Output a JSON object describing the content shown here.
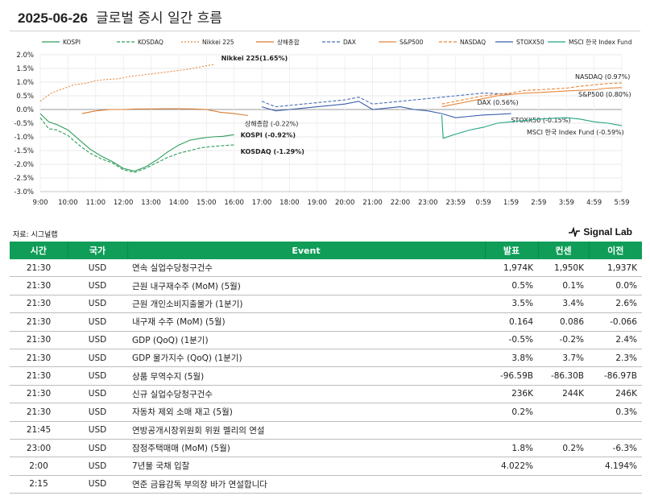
{
  "header": {
    "date": "2025-06-26",
    "title": "글로벌 증시 일간 흐름"
  },
  "chart_data": {
    "type": "line",
    "title": "글로벌 증시 일간 흐름",
    "x_ticks": [
      "9:00",
      "10:00",
      "11:00",
      "12:00",
      "13:00",
      "14:00",
      "15:00",
      "16:00",
      "17:00",
      "18:00",
      "19:00",
      "20:00",
      "21:00",
      "22:00",
      "23:00",
      "23:59",
      "0:59",
      "1:59",
      "2:59",
      "3:59",
      "4:59",
      "5:59"
    ],
    "y_ticks": [
      "2.0%",
      "1.5%",
      "1.0%",
      "0.5%",
      "0.0%",
      "-0.5%",
      "-1.0%",
      "-1.5%",
      "-2.0%",
      "-2.5%",
      "-3.0%"
    ],
    "ylim": [
      -3.0,
      2.0
    ],
    "xlim": [
      0,
      21
    ],
    "grid": true,
    "legend_position": "top",
    "series": [
      {
        "name": "KOSPI",
        "color": "#2e9d5b",
        "dash": "solid",
        "end_label": "KOSPI (-0.92%)",
        "points": [
          [
            0,
            -0.15
          ],
          [
            0.3,
            -0.45
          ],
          [
            0.6,
            -0.55
          ],
          [
            1.0,
            -0.75
          ],
          [
            1.4,
            -1.1
          ],
          [
            1.8,
            -1.45
          ],
          [
            2.2,
            -1.7
          ],
          [
            2.6,
            -1.9
          ],
          [
            3.0,
            -2.15
          ],
          [
            3.4,
            -2.25
          ],
          [
            3.8,
            -2.1
          ],
          [
            4.2,
            -1.85
          ],
          [
            4.6,
            -1.55
          ],
          [
            5.0,
            -1.3
          ],
          [
            5.4,
            -1.12
          ],
          [
            5.8,
            -1.05
          ],
          [
            6.2,
            -1.0
          ],
          [
            6.6,
            -0.98
          ],
          [
            7.0,
            -0.92
          ]
        ]
      },
      {
        "name": "KOSDAQ",
        "color": "#2e9d5b",
        "dash": "dash",
        "end_label": "KOSDAQ (-1.29%)",
        "points": [
          [
            0,
            -0.3
          ],
          [
            0.3,
            -0.7
          ],
          [
            0.6,
            -0.75
          ],
          [
            1.0,
            -0.95
          ],
          [
            1.4,
            -1.3
          ],
          [
            1.8,
            -1.6
          ],
          [
            2.2,
            -1.8
          ],
          [
            2.6,
            -1.95
          ],
          [
            3.0,
            -2.2
          ],
          [
            3.4,
            -2.3
          ],
          [
            3.8,
            -2.15
          ],
          [
            4.2,
            -1.95
          ],
          [
            4.6,
            -1.75
          ],
          [
            5.0,
            -1.6
          ],
          [
            5.4,
            -1.5
          ],
          [
            5.8,
            -1.4
          ],
          [
            6.2,
            -1.35
          ],
          [
            6.6,
            -1.32
          ],
          [
            7.0,
            -1.29
          ]
        ]
      },
      {
        "name": "Nikkei 225",
        "color": "#e8873a",
        "dash": "dot",
        "end_label": "Nikkei 225(1.65%)",
        "points": [
          [
            0,
            0.3
          ],
          [
            0.4,
            0.6
          ],
          [
            0.8,
            0.75
          ],
          [
            1.2,
            0.9
          ],
          [
            1.6,
            0.95
          ],
          [
            2.0,
            1.05
          ],
          [
            2.4,
            1.1
          ],
          [
            2.8,
            1.12
          ],
          [
            3.2,
            1.2
          ],
          [
            3.6,
            1.25
          ],
          [
            4.0,
            1.3
          ],
          [
            4.4,
            1.35
          ],
          [
            4.8,
            1.4
          ],
          [
            5.2,
            1.45
          ],
          [
            5.6,
            1.52
          ],
          [
            6.0,
            1.6
          ],
          [
            6.3,
            1.65
          ]
        ]
      },
      {
        "name": "상해종합",
        "color": "#d97b2f",
        "dash": "solid",
        "end_label": "상해종합 (-0.22%)",
        "points": [
          [
            1.5,
            -0.15
          ],
          [
            2.0,
            -0.05
          ],
          [
            2.5,
            0.0
          ],
          [
            3.0,
            0.0
          ],
          [
            3.5,
            0.02
          ],
          [
            4.0,
            0.02
          ],
          [
            4.5,
            0.03
          ],
          [
            5.0,
            0.03
          ],
          [
            5.5,
            0.02
          ],
          [
            6.0,
            0.0
          ],
          [
            6.5,
            -0.1
          ],
          [
            7.0,
            -0.15
          ],
          [
            7.5,
            -0.22
          ]
        ]
      },
      {
        "name": "DAX",
        "color": "#4a6fb5",
        "dash": "dash",
        "end_label": "DAX (0.56%)",
        "points": [
          [
            8.0,
            0.3
          ],
          [
            8.5,
            0.1
          ],
          [
            9.0,
            0.15
          ],
          [
            9.5,
            0.2
          ],
          [
            10.0,
            0.25
          ],
          [
            10.5,
            0.3
          ],
          [
            11.0,
            0.35
          ],
          [
            11.5,
            0.45
          ],
          [
            12.0,
            0.2
          ],
          [
            12.5,
            0.25
          ],
          [
            13.0,
            0.3
          ],
          [
            13.5,
            0.35
          ],
          [
            14.0,
            0.4
          ],
          [
            14.5,
            0.45
          ],
          [
            15.0,
            0.5
          ],
          [
            15.5,
            0.55
          ],
          [
            16.0,
            0.6
          ],
          [
            16.5,
            0.58
          ],
          [
            17.0,
            0.56
          ]
        ]
      },
      {
        "name": "S&P500",
        "color": "#e8873a",
        "dash": "solid",
        "end_label": "S&P500 (0.80%)",
        "points": [
          [
            14.5,
            0.1
          ],
          [
            15.0,
            0.2
          ],
          [
            15.5,
            0.3
          ],
          [
            16.0,
            0.4
          ],
          [
            16.5,
            0.5
          ],
          [
            17.0,
            0.55
          ],
          [
            17.5,
            0.6
          ],
          [
            18.0,
            0.62
          ],
          [
            18.5,
            0.65
          ],
          [
            19.0,
            0.68
          ],
          [
            19.5,
            0.7
          ],
          [
            20.0,
            0.72
          ],
          [
            20.5,
            0.78
          ],
          [
            21.0,
            0.8
          ]
        ]
      },
      {
        "name": "NASDAQ",
        "color": "#e8873a",
        "dash": "dash",
        "end_label": "NASDAQ (0.97%)",
        "points": [
          [
            14.5,
            0.2
          ],
          [
            15.0,
            0.3
          ],
          [
            15.5,
            0.4
          ],
          [
            16.0,
            0.5
          ],
          [
            16.5,
            0.55
          ],
          [
            17.0,
            0.6
          ],
          [
            17.5,
            0.7
          ],
          [
            18.0,
            0.72
          ],
          [
            18.5,
            0.75
          ],
          [
            19.0,
            0.78
          ],
          [
            19.5,
            0.85
          ],
          [
            20.0,
            0.9
          ],
          [
            20.5,
            0.95
          ],
          [
            21.0,
            0.97
          ]
        ]
      },
      {
        "name": "STOXX50",
        "color": "#3a5fa8",
        "dash": "solid",
        "end_label": "STOXX50 (-0.15%)",
        "points": [
          [
            8.0,
            0.1
          ],
          [
            8.5,
            -0.05
          ],
          [
            9.0,
            0.0
          ],
          [
            9.5,
            0.05
          ],
          [
            10.0,
            0.1
          ],
          [
            10.5,
            0.15
          ],
          [
            11.0,
            0.2
          ],
          [
            11.5,
            0.3
          ],
          [
            12.0,
            0.0
          ],
          [
            12.5,
            0.05
          ],
          [
            13.0,
            0.1
          ],
          [
            13.5,
            0.0
          ],
          [
            14.0,
            -0.05
          ],
          [
            14.5,
            -0.15
          ],
          [
            15.0,
            -0.3
          ],
          [
            15.5,
            -0.25
          ],
          [
            16.0,
            -0.2
          ],
          [
            16.5,
            -0.18
          ],
          [
            17.0,
            -0.15
          ]
        ]
      },
      {
        "name": "MSCI 한국 Index Fund",
        "color": "#22a584",
        "dash": "solid",
        "end_label": "MSCI 한국 Index Fund (-0.59%)",
        "points": [
          [
            14.5,
            -0.2
          ],
          [
            14.55,
            -1.05
          ],
          [
            15.0,
            -0.9
          ],
          [
            15.5,
            -0.75
          ],
          [
            16.0,
            -0.65
          ],
          [
            16.5,
            -0.5
          ],
          [
            17.0,
            -0.45
          ],
          [
            17.5,
            -0.4
          ],
          [
            18.0,
            -0.35
          ],
          [
            18.5,
            -0.32
          ],
          [
            19.0,
            -0.3
          ],
          [
            19.5,
            -0.35
          ],
          [
            20.0,
            -0.45
          ],
          [
            20.5,
            -0.5
          ],
          [
            21.0,
            -0.59
          ]
        ]
      }
    ]
  },
  "source": "자료: 시그널랩",
  "brand": "Signal Lab",
  "table": {
    "headers": [
      "시간",
      "국가",
      "Event",
      "발표",
      "컨센",
      "이전"
    ],
    "rows": [
      [
        "21:30",
        "USD",
        "연속 실업수당청구건수",
        "1,974K",
        "1,950K",
        "1,937K"
      ],
      [
        "21:30",
        "USD",
        "근원 내구재수주 (MoM) (5월)",
        "0.5%",
        "0.1%",
        "0.0%"
      ],
      [
        "21:30",
        "USD",
        "근원 개인소비지출물가 (1분기)",
        "3.5%",
        "3.4%",
        "2.6%"
      ],
      [
        "21:30",
        "USD",
        "내구재 수주 (MoM) (5월)",
        "0.164",
        "0.086",
        "-0.066"
      ],
      [
        "21:30",
        "USD",
        "GDP (QoQ) (1분기)",
        "-0.5%",
        "-0.2%",
        "2.4%"
      ],
      [
        "21:30",
        "USD",
        "GDP 물가지수 (QoQ) (1분기)",
        "3.8%",
        "3.7%",
        "2.3%"
      ],
      [
        "21:30",
        "USD",
        "상품 무역수지 (5월)",
        "-96.59B",
        "-86.30B",
        "-86.97B"
      ],
      [
        "21:30",
        "USD",
        "신규 실업수당청구건수",
        "236K",
        "244K",
        "246K"
      ],
      [
        "21:30",
        "USD",
        "자동차 제외 소매 재고 (5월)",
        "0.2%",
        "",
        "0.3%"
      ],
      [
        "21:45",
        "USD",
        "연방공개시장위원회 위원 멜리의 연설",
        "",
        "",
        ""
      ],
      [
        "23:00",
        "USD",
        "잠정주택매매 (MoM) (5월)",
        "1.8%",
        "0.2%",
        "-6.3%"
      ],
      [
        "2:00",
        "USD",
        "7년물 국채 입찰",
        "4.022%",
        "",
        "4.194%"
      ],
      [
        "2:15",
        "USD",
        "연준 금융감독 부의장 바가 연설합니다",
        "",
        "",
        ""
      ]
    ]
  }
}
